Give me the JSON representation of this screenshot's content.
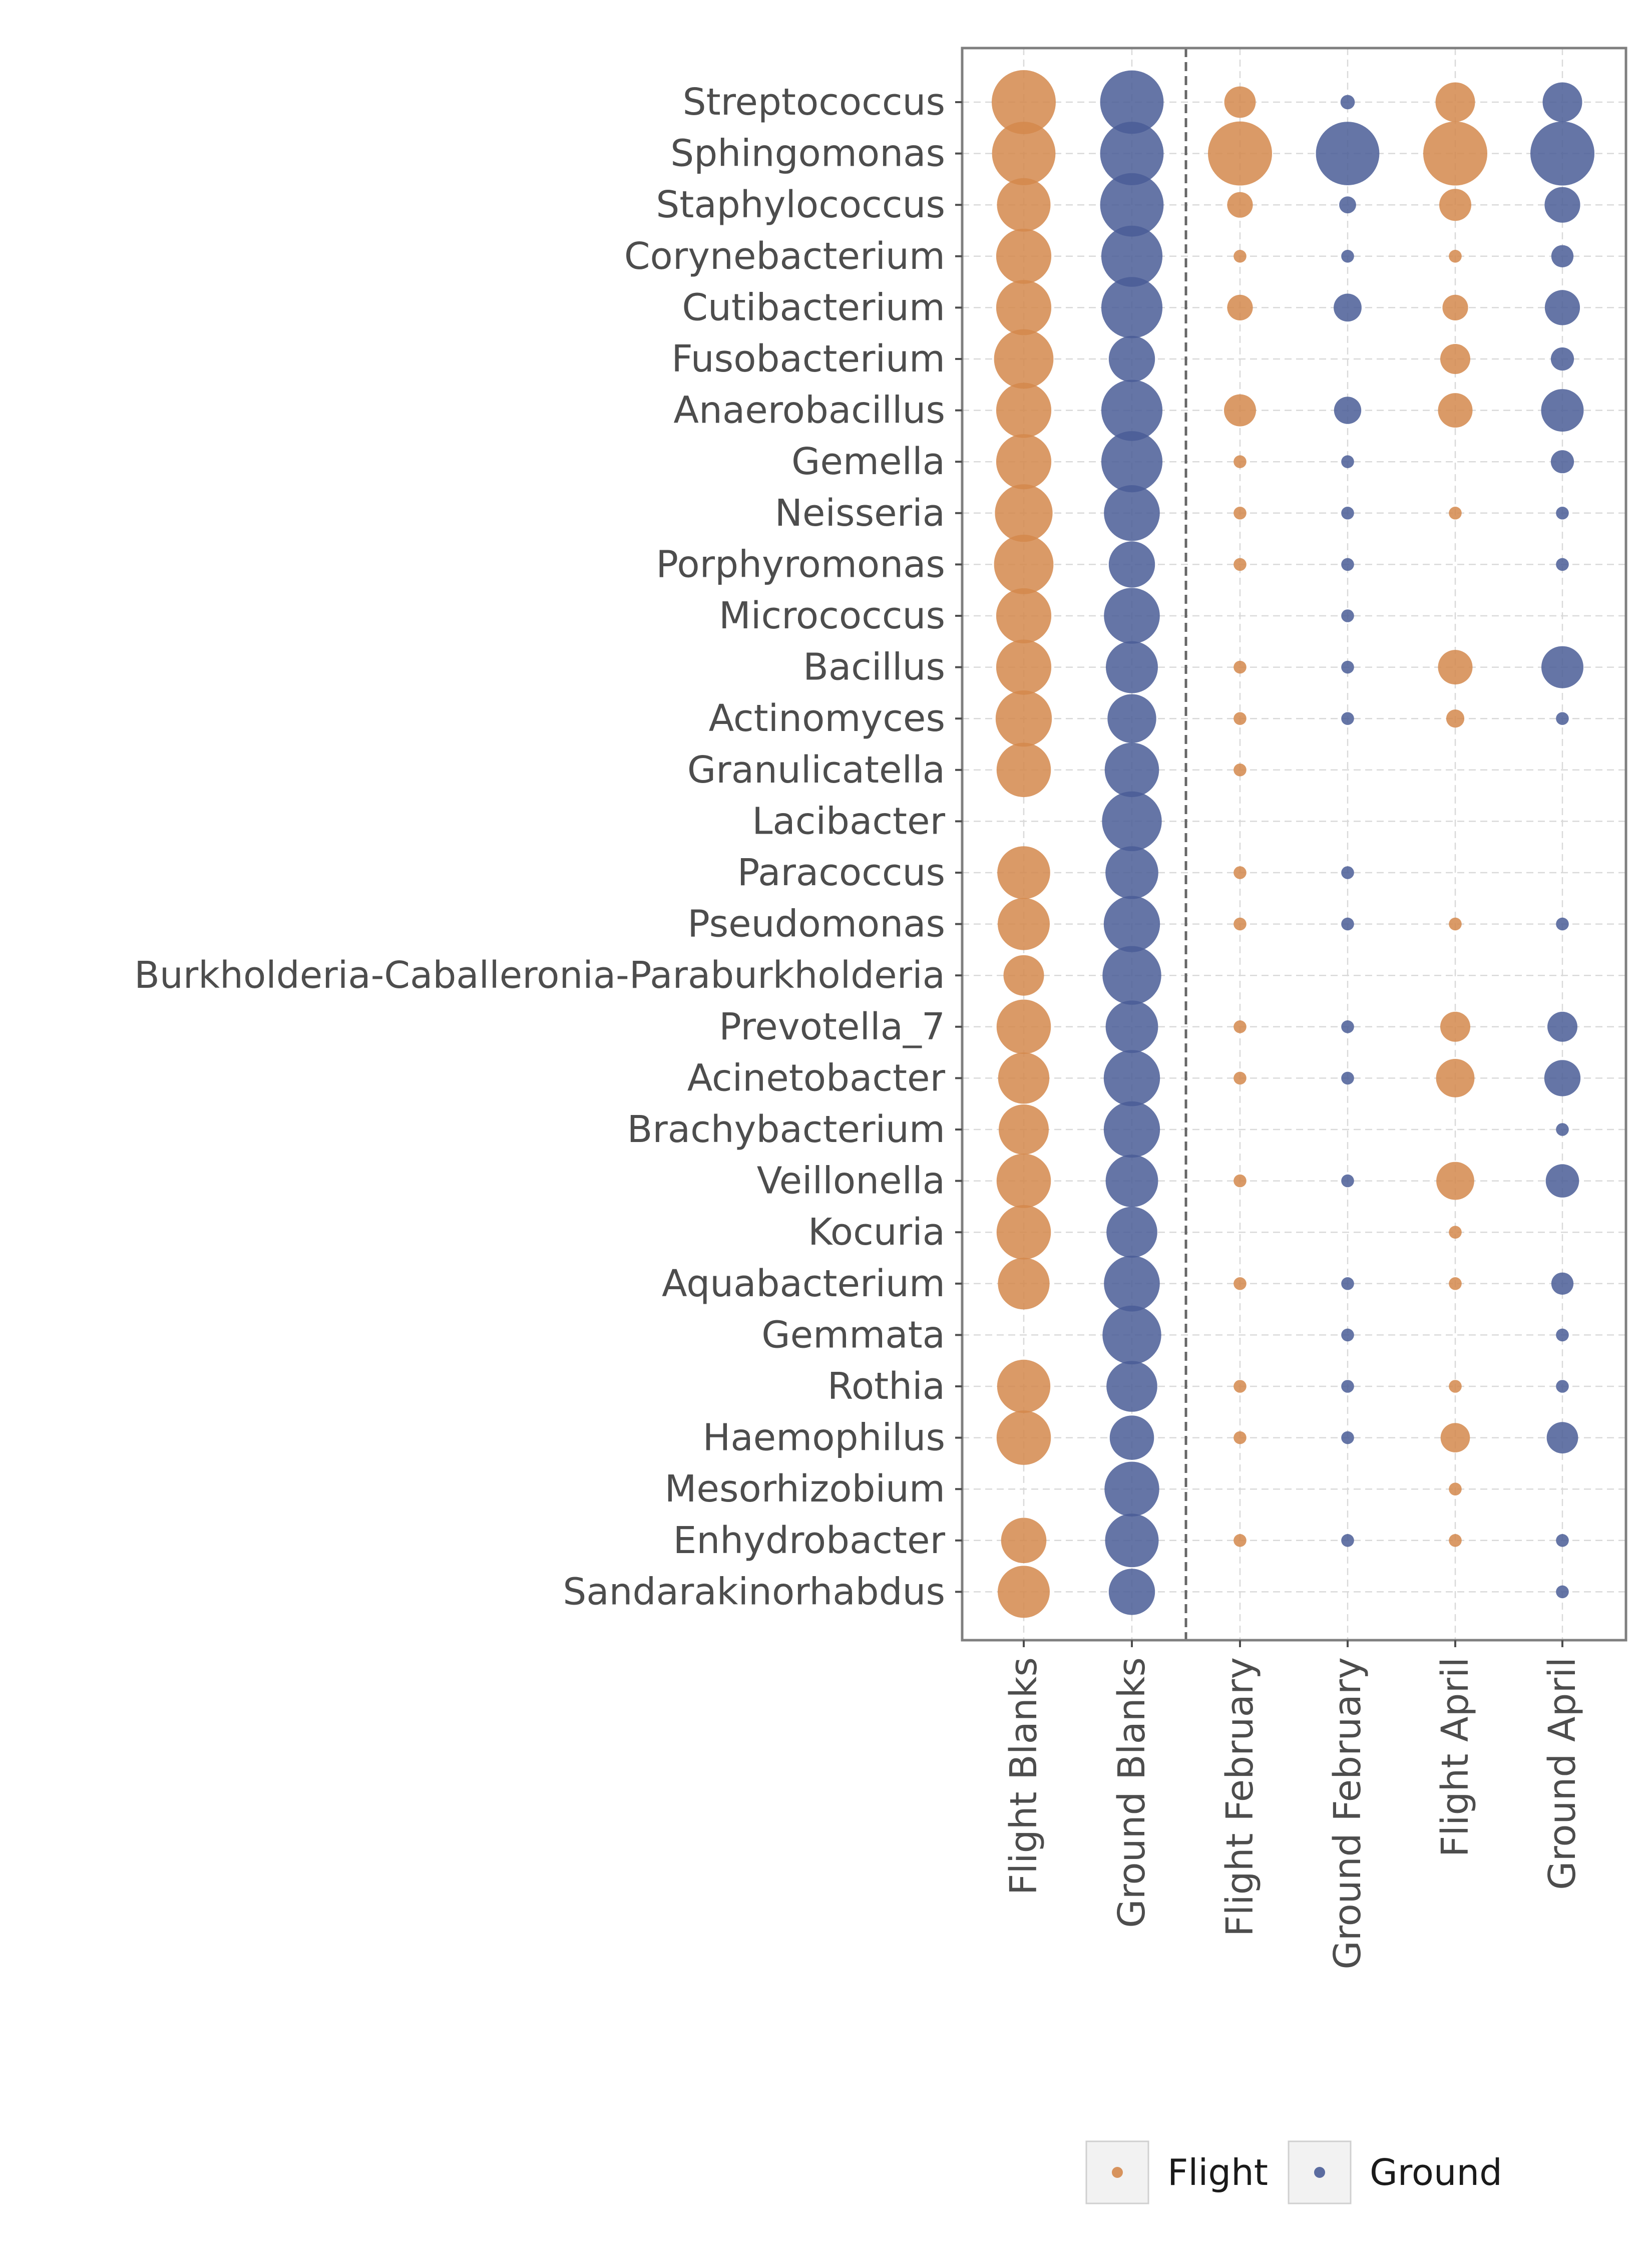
{
  "chart_data": {
    "type": "scatter",
    "subtype": "bubble",
    "categories": [
      "Flight Blanks",
      "Ground Blanks",
      "Flight February",
      "Ground February",
      "Flight April",
      "Ground April"
    ],
    "category_group": [
      "Flight",
      "Ground",
      "Flight",
      "Ground",
      "Flight",
      "Ground"
    ],
    "genera": [
      "Streptococcus",
      "Sphingomonas",
      "Staphylococcus",
      "Corynebacterium",
      "Cutibacterium",
      "Fusobacterium",
      "Anaerobacillus",
      "Gemella",
      "Neisseria",
      "Porphyromonas",
      "Micrococcus",
      "Bacillus",
      "Actinomyces",
      "Granulicatella",
      "Lacibacter",
      "Paracoccus",
      "Pseudomonas",
      "Burkholderia-Caballeronia-Paraburkholderia",
      "Prevotella_7",
      "Acinetobacter",
      "Brachybacterium",
      "Veillonella",
      "Kocuria",
      "Aquabacterium",
      "Gemmata",
      "Rothia",
      "Haemophilus",
      "Mesorhizobium",
      "Enhydrobacter",
      "Sandarakinorhabdus"
    ],
    "relative_size": [
      [
        1.0,
        0.98,
        0.24,
        0.05,
        0.38,
        0.38
      ],
      [
        0.98,
        0.98,
        1.0,
        0.98,
        1.0,
        1.0
      ],
      [
        0.7,
        0.98,
        0.16,
        0.07,
        0.25,
        0.31
      ],
      [
        0.74,
        0.91,
        0.04,
        0.04,
        0.04,
        0.12
      ],
      [
        0.74,
        0.91,
        0.16,
        0.19,
        0.16,
        0.3
      ],
      [
        0.86,
        0.52,
        0.0,
        0.0,
        0.22,
        0.13
      ],
      [
        0.74,
        0.91,
        0.25,
        0.18,
        0.29,
        0.44
      ],
      [
        0.74,
        0.91,
        0.04,
        0.04,
        0.0,
        0.13
      ],
      [
        0.81,
        0.76,
        0.04,
        0.04,
        0.04,
        0.04
      ],
      [
        0.86,
        0.52,
        0.04,
        0.04,
        0.0,
        0.04
      ],
      [
        0.74,
        0.76,
        0.0,
        0.04,
        0.0,
        0.0
      ],
      [
        0.74,
        0.66,
        0.04,
        0.04,
        0.29,
        0.43
      ],
      [
        0.77,
        0.58,
        0.04,
        0.04,
        0.08,
        0.04
      ],
      [
        0.72,
        0.72,
        0.04,
        0.0,
        0.0,
        0.0
      ],
      [
        0.0,
        0.87,
        0.0,
        0.0,
        0.0,
        0.0
      ],
      [
        0.68,
        0.68,
        0.04,
        0.04,
        0.0,
        0.0
      ],
      [
        0.66,
        0.77,
        0.04,
        0.04,
        0.04,
        0.04
      ],
      [
        0.4,
        0.84,
        0.0,
        0.0,
        0.0,
        0.0
      ],
      [
        0.72,
        0.67,
        0.04,
        0.04,
        0.22,
        0.22
      ],
      [
        0.64,
        0.77,
        0.04,
        0.04,
        0.36,
        0.32
      ],
      [
        0.61,
        0.77,
        0.0,
        0.0,
        0.0,
        0.04
      ],
      [
        0.72,
        0.67,
        0.04,
        0.04,
        0.35,
        0.27
      ],
      [
        0.72,
        0.63,
        0.0,
        0.0,
        0.04,
        0.0
      ],
      [
        0.65,
        0.76,
        0.04,
        0.04,
        0.04,
        0.12
      ],
      [
        0.0,
        0.84,
        0.0,
        0.04,
        0.0,
        0.04
      ],
      [
        0.69,
        0.63,
        0.04,
        0.04,
        0.04,
        0.04
      ],
      [
        0.72,
        0.48,
        0.04,
        0.04,
        0.21,
        0.24
      ],
      [
        0.0,
        0.73,
        0.0,
        0.0,
        0.04,
        0.0
      ],
      [
        0.5,
        0.7,
        0.04,
        0.04,
        0.04,
        0.04
      ],
      [
        0.66,
        0.52,
        0.0,
        0.0,
        0.0,
        0.04
      ]
    ],
    "legend": [
      {
        "name": "Flight",
        "color": "#d4884c"
      },
      {
        "name": "Ground",
        "color": "#4a5d97"
      }
    ],
    "legend_placement": "bottom",
    "grid": true,
    "divider": "dashed vertical line between Ground Blanks and Flight February",
    "title": "",
    "xlabel": "",
    "ylabel": ""
  }
}
